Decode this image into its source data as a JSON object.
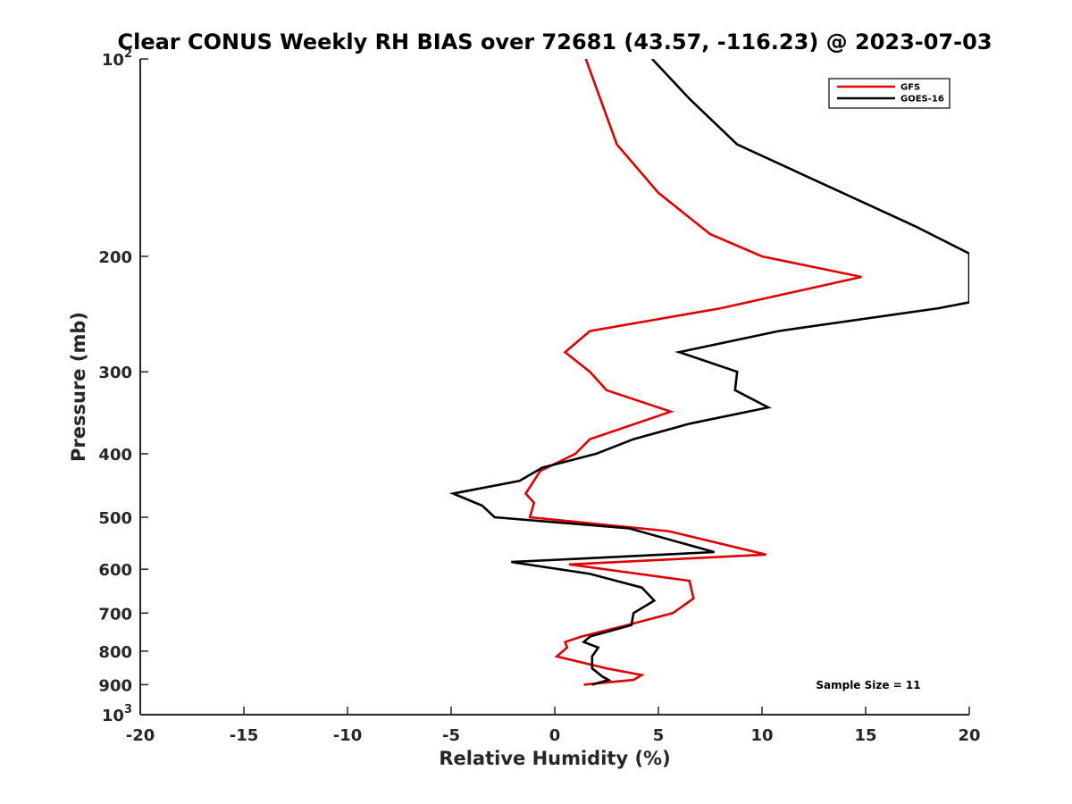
{
  "chart_data": {
    "type": "line",
    "title": "Clear CONUS Weekly RH BIAS over 72681 (43.57, -116.23) @ 2023-07-03",
    "xlabel": "Relative Humidity (%)",
    "ylabel": "Pressure (mb)",
    "xlim": [
      -20,
      20
    ],
    "ylim": [
      100,
      1000
    ],
    "y_scale": "log",
    "y_reversed": true,
    "x_ticks": [
      "-20",
      "-15",
      "-10",
      "-5",
      "0",
      "5",
      "10",
      "15",
      "20"
    ],
    "y_ticks": [
      {
        "value": 100,
        "base": "10",
        "exp": "2"
      },
      {
        "value": 200,
        "label": "200"
      },
      {
        "value": 300,
        "label": "300"
      },
      {
        "value": 400,
        "label": "400"
      },
      {
        "value": 500,
        "label": "500"
      },
      {
        "value": 600,
        "label": "600"
      },
      {
        "value": 700,
        "label": "700"
      },
      {
        "value": 800,
        "label": "800"
      },
      {
        "value": 900,
        "label": "900"
      },
      {
        "value": 1000,
        "base": "10",
        "exp": "3"
      }
    ],
    "grid": false,
    "legend_position": "top-right",
    "annotation": "Sample Size = 11",
    "series": [
      {
        "name": "GFS",
        "color": "#e00000",
        "points": [
          [
            1.5,
            100
          ],
          [
            2.2,
            115
          ],
          [
            3.0,
            135
          ],
          [
            5.0,
            160
          ],
          [
            7.5,
            185
          ],
          [
            10.0,
            200
          ],
          [
            14.8,
            215
          ],
          [
            8.0,
            240
          ],
          [
            1.7,
            260
          ],
          [
            0.5,
            280
          ],
          [
            1.7,
            300
          ],
          [
            2.5,
            320
          ],
          [
            5.6,
            345
          ],
          [
            1.7,
            380
          ],
          [
            1.0,
            400
          ],
          [
            -0.7,
            425
          ],
          [
            -1.4,
            460
          ],
          [
            -1.0,
            475
          ],
          [
            -1.2,
            500
          ],
          [
            5.5,
            525
          ],
          [
            10.2,
            570
          ],
          [
            0.7,
            590
          ],
          [
            6.5,
            625
          ],
          [
            6.7,
            665
          ],
          [
            5.7,
            700
          ],
          [
            3.5,
            730
          ],
          [
            1.3,
            760
          ],
          [
            0.5,
            775
          ],
          [
            0.6,
            790
          ],
          [
            0.1,
            815
          ],
          [
            2.5,
            850
          ],
          [
            4.2,
            870
          ],
          [
            3.8,
            885
          ],
          [
            1.4,
            900
          ]
        ]
      },
      {
        "name": "GOES-16",
        "color": "#000000",
        "points": [
          [
            4.7,
            100
          ],
          [
            6.5,
            115
          ],
          [
            8.8,
            135
          ],
          [
            17.4,
            180
          ],
          [
            20.0,
            198
          ],
          [
            20.0,
            235
          ],
          [
            18.5,
            240
          ],
          [
            10.8,
            260
          ],
          [
            6.0,
            280
          ],
          [
            8.8,
            300
          ],
          [
            8.7,
            320
          ],
          [
            10.3,
            340
          ],
          [
            6.5,
            360
          ],
          [
            3.8,
            380
          ],
          [
            2.0,
            400
          ],
          [
            -0.6,
            420
          ],
          [
            -1.7,
            440
          ],
          [
            -4.9,
            460
          ],
          [
            -3.5,
            480
          ],
          [
            -2.9,
            500
          ],
          [
            3.6,
            520
          ],
          [
            7.7,
            565
          ],
          [
            -2.1,
            585
          ],
          [
            1.7,
            610
          ],
          [
            4.2,
            640
          ],
          [
            4.8,
            670
          ],
          [
            3.8,
            700
          ],
          [
            3.7,
            730
          ],
          [
            1.7,
            760
          ],
          [
            1.4,
            775
          ],
          [
            2.1,
            790
          ],
          [
            1.8,
            815
          ],
          [
            1.8,
            850
          ],
          [
            2.3,
            875
          ],
          [
            2.6,
            885
          ],
          [
            1.8,
            900
          ]
        ]
      }
    ]
  }
}
